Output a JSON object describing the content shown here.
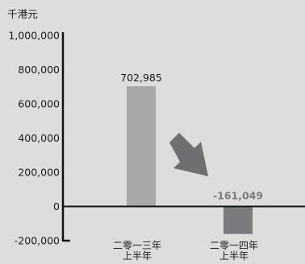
{
  "chart_data": {
    "type": "bar",
    "unit_label": "千港元",
    "categories": [
      [
        "二零一三年",
        "上半年"
      ],
      [
        "二零一四年",
        "上半年"
      ]
    ],
    "values": [
      702985,
      -161049
    ],
    "data_labels": [
      "702,985",
      "-161,049"
    ],
    "ylim": [
      -200000,
      1000000
    ],
    "yticks": [
      {
        "value": 1000000,
        "label": "1,000,000"
      },
      {
        "value": 800000,
        "label": "800,000"
      },
      {
        "value": 600000,
        "label": "600,000"
      },
      {
        "value": 400000,
        "label": "400,000"
      },
      {
        "value": 200000,
        "label": "200,000"
      },
      {
        "value": 0,
        "label": "0"
      },
      {
        "value": -200000,
        "label": "-200,000"
      }
    ],
    "colors": {
      "bar_positive": "#a9a7a7",
      "bar_negative": "#7b7a7c",
      "label_positive": "#1a1a1a",
      "label_negative": "#7b7a7c",
      "arrow": "#6f6e70",
      "axis": "#111111"
    },
    "annotation": "arrow-down-right",
    "grid": false,
    "legend": "none"
  }
}
